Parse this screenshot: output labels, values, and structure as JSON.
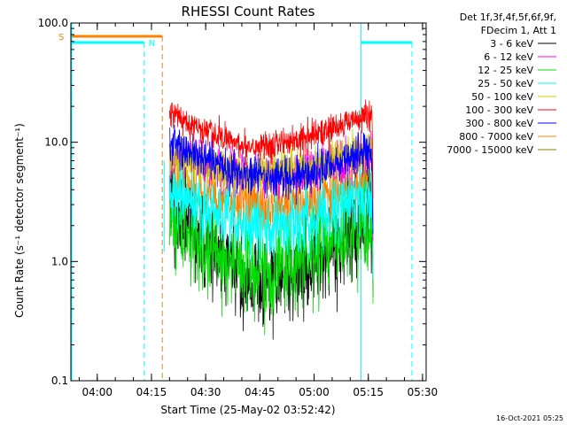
{
  "chart_data": {
    "type": "line",
    "title": "RHESSI Count Rates",
    "xlabel": "Start Time (25-May-02 03:52:42)",
    "ylabel": "Count Rate (s⁻¹ detector segment⁻¹)",
    "y_scale": "log",
    "ylim": [
      0.1,
      100.0
    ],
    "xlim": [
      "03:52:42",
      "05:31:00"
    ],
    "x_ticks": [
      "04:00",
      "04:15",
      "04:30",
      "04:45",
      "05:00",
      "05:15",
      "05:30"
    ],
    "y_ticks": [
      "0.1",
      "1.0",
      "10.0",
      "100.0"
    ],
    "legend_header": [
      "Det 1f,3f,4f,5f,6f,9f,",
      "FDecim 1, Att 1"
    ],
    "legend_position": "right",
    "timestamp": "16-Oct-2021 05:25",
    "markers": {
      "saa_label": "S",
      "night_label": "N",
      "saa_interval": [
        "03:52:42",
        "04:18:00"
      ],
      "night_intervals": [
        [
          "03:52:42",
          "04:13:00"
        ],
        [
          "05:13:00",
          "05:31:00"
        ]
      ],
      "saa_color": "#ff8000",
      "night_color": "#00ffff"
    },
    "series": [
      {
        "name": "3 - 6 keV",
        "color": "#000000",
        "x": [
          "04:20",
          "04:30",
          "04:40",
          "04:48",
          "05:00",
          "05:10",
          "05:16"
        ],
        "y": [
          3.0,
          1.4,
          0.75,
          0.65,
          0.95,
          1.7,
          2.5
        ]
      },
      {
        "name": "6 - 12 keV",
        "color": "#ff00ff",
        "x": [
          "04:20",
          "04:30",
          "04:40",
          "04:48",
          "05:00",
          "05:10",
          "05:16"
        ],
        "y": [
          8.0,
          6.5,
          5.5,
          5.2,
          6.0,
          7.0,
          7.5
        ]
      },
      {
        "name": "12 - 25 keV",
        "color": "#00dd00",
        "x": [
          "04:20",
          "04:30",
          "04:40",
          "04:48",
          "05:00",
          "05:10",
          "05:16"
        ],
        "y": [
          2.5,
          1.3,
          0.9,
          0.8,
          1.1,
          1.8,
          2.2
        ]
      },
      {
        "name": "25 - 50 keV",
        "color": "#00ffff",
        "x": [
          "04:20",
          "04:30",
          "04:40",
          "04:48",
          "05:00",
          "05:10",
          "05:16"
        ],
        "y": [
          3.8,
          2.7,
          2.0,
          1.9,
          2.3,
          3.2,
          3.6
        ]
      },
      {
        "name": "50 - 100 keV",
        "color": "#cccc00",
        "x": [
          "04:20",
          "04:30",
          "04:40",
          "04:48",
          "05:00",
          "05:10",
          "05:16"
        ],
        "y": [
          7.5,
          6.2,
          5.5,
          5.5,
          6.5,
          8.0,
          9.0
        ]
      },
      {
        "name": "100 - 300 keV",
        "color": "#ff0000",
        "x": [
          "04:20",
          "04:30",
          "04:40",
          "04:48",
          "05:00",
          "05:10",
          "05:16"
        ],
        "y": [
          18.0,
          12.0,
          9.5,
          9.5,
          11.5,
          15.0,
          17.0
        ]
      },
      {
        "name": "300 - 800 keV",
        "color": "#0000ff",
        "x": [
          "04:20",
          "04:30",
          "04:40",
          "04:48",
          "05:00",
          "05:10",
          "05:16"
        ],
        "y": [
          10.0,
          7.0,
          5.5,
          5.0,
          5.5,
          7.5,
          8.5
        ]
      },
      {
        "name": "800 - 7000 keV",
        "color": "#ff8000",
        "x": [
          "04:20",
          "04:30",
          "04:40",
          "04:48",
          "05:00",
          "05:10",
          "05:16"
        ],
        "y": [
          5.0,
          3.7,
          3.0,
          2.8,
          3.2,
          4.3,
          5.0
        ]
      },
      {
        "name": "7000 - 15000 keV",
        "color": "#808000",
        "x": [],
        "y": []
      }
    ]
  }
}
